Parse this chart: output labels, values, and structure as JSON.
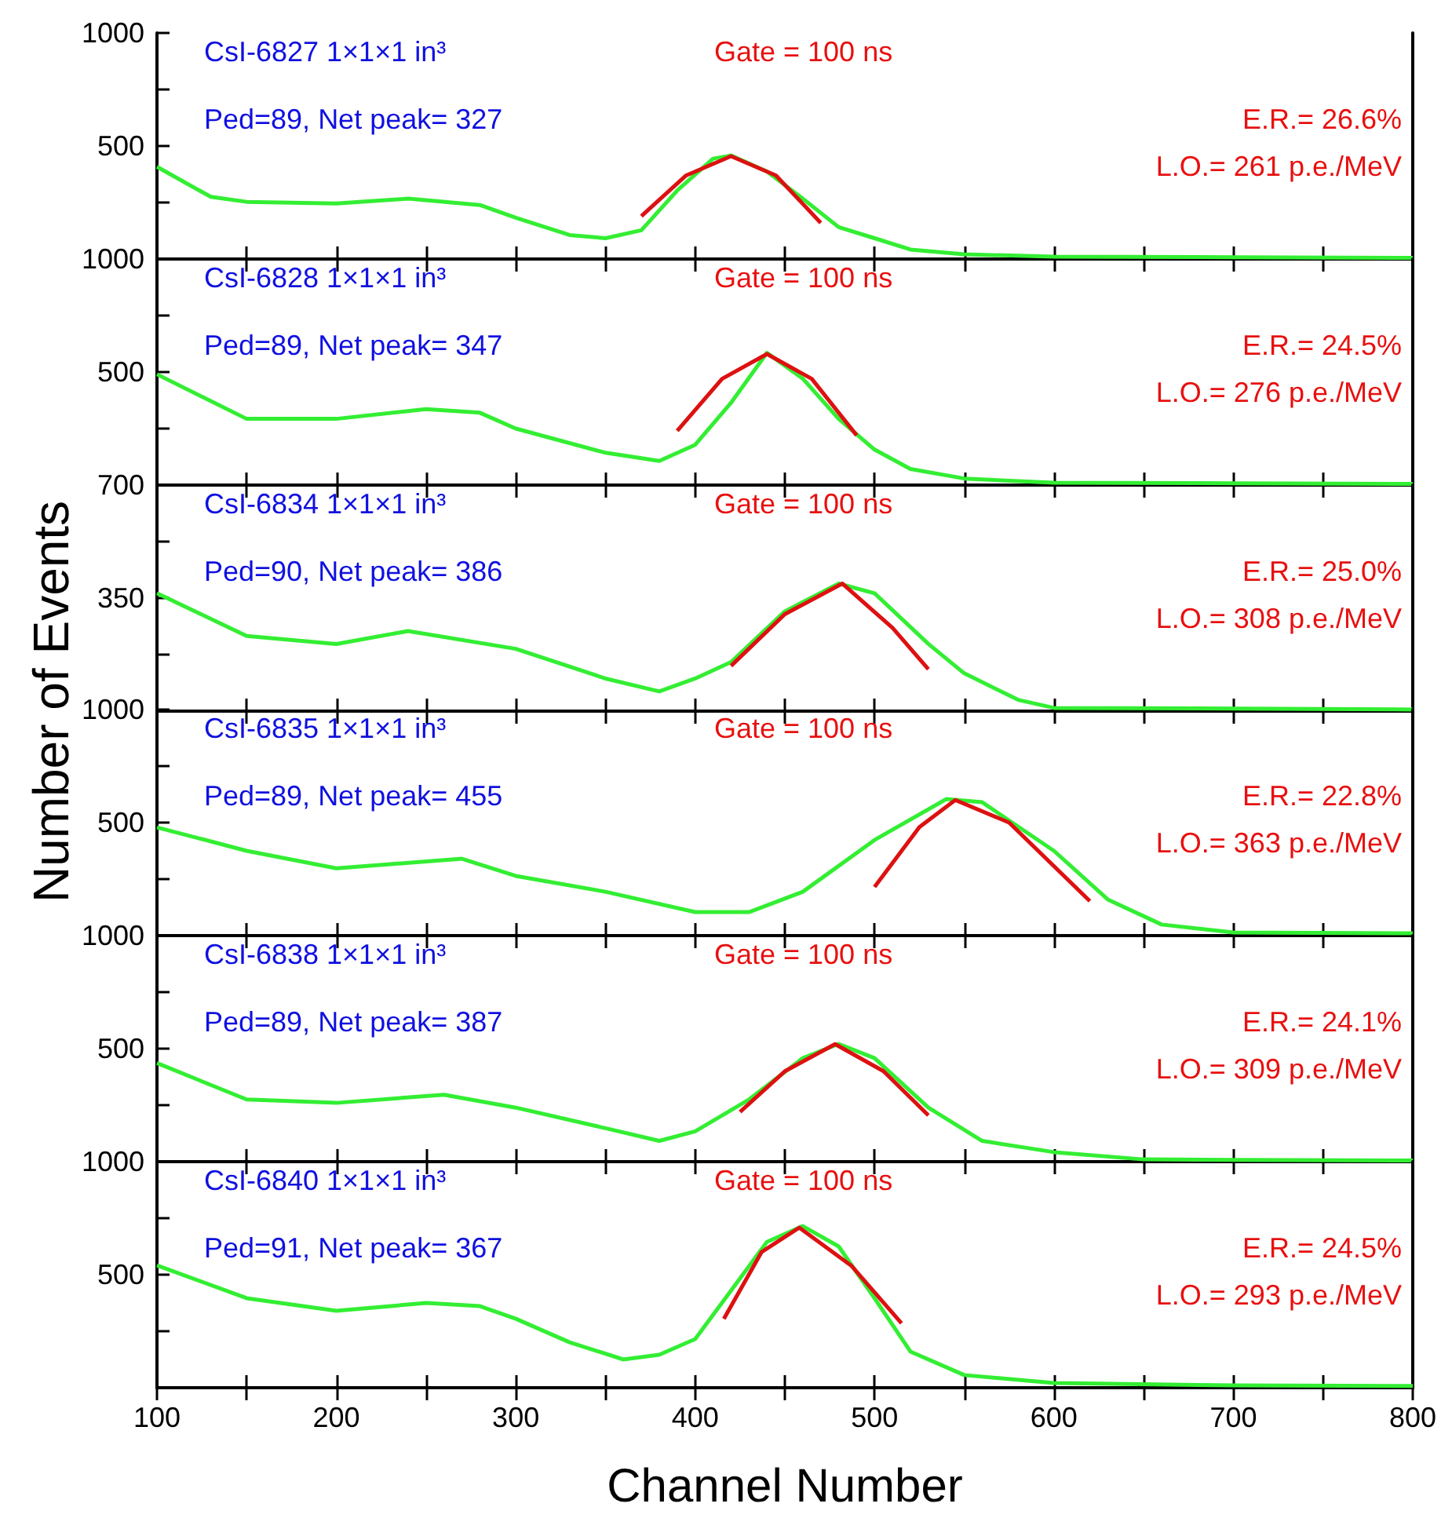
{
  "chart_data": [
    {
      "type": "line",
      "title": "CsI-6827 1×1×1 in³",
      "annotations": [
        "Gate = 100 ns",
        "Ped=89, Net peak= 327",
        "E.R.= 26.6%",
        "L.O.= 261 p.e./MeV"
      ],
      "xlim": [
        100,
        800
      ],
      "xticks": [
        100,
        {
          "value": 150,
          "label": null
        },
        200,
        {
          "value": 250,
          "label": null
        },
        300,
        {
          "value": 350,
          "label": null
        },
        400,
        {
          "value": 450,
          "label": null
        },
        500,
        {
          "value": 550,
          "label": null
        },
        600,
        {
          "value": 650,
          "label": null
        },
        700,
        {
          "value": 750,
          "label": null
        },
        800
      ],
      "ylim": [
        0,
        1000
      ],
      "yticks": [
        {
          "value": 0,
          "label": null
        },
        {
          "value": 250,
          "label": null
        },
        500,
        {
          "value": 750,
          "label": null
        },
        1000
      ],
      "tick_labels": "y",
      "series": [
        {
          "color": "#33ee33",
          "x": [
            100,
            130,
            150,
            200,
            240,
            280,
            300,
            330,
            350,
            370,
            390,
            410,
            420,
            440,
            460,
            480,
            500,
            520,
            550,
            600,
            700,
            800
          ],
          "values": [
            408,
            275,
            253,
            246,
            267,
            239,
            183,
            106,
            92,
            127,
            303,
            444,
            458,
            387,
            267,
            141,
            92,
            42,
            21,
            10,
            8,
            5
          ]
        },
        {
          "color": "#dd1111",
          "x": [
            370,
            395,
            420,
            445,
            470
          ],
          "values": [
            190,
            370,
            455,
            370,
            160
          ]
        }
      ]
    },
    {
      "type": "line",
      "title": "CsI-6828 1×1×1 in³",
      "annotations": [
        "Gate = 100 ns",
        "Ped=89, Net peak= 347",
        "E.R.= 24.5%",
        "L.O.= 276 p.e./MeV"
      ],
      "xlim": [
        100,
        800
      ],
      "xticks": [
        100,
        {
          "value": 150,
          "label": null
        },
        200,
        {
          "value": 250,
          "label": null
        },
        300,
        {
          "value": 350,
          "label": null
        },
        400,
        {
          "value": 450,
          "label": null
        },
        500,
        {
          "value": 550,
          "label": null
        },
        600,
        {
          "value": 650,
          "label": null
        },
        700,
        {
          "value": 750,
          "label": null
        },
        800
      ],
      "ylim": [
        0,
        1000
      ],
      "yticks": [
        {
          "value": 0,
          "label": null
        },
        {
          "value": 250,
          "label": null
        },
        500,
        {
          "value": 750,
          "label": null
        },
        1000
      ],
      "tick_labels": "y",
      "series": [
        {
          "color": "#33ee33",
          "x": [
            100,
            150,
            200,
            250,
            280,
            300,
            350,
            380,
            400,
            420,
            440,
            460,
            480,
            500,
            520,
            550,
            600,
            700,
            800
          ],
          "values": [
            490,
            293,
            293,
            336,
            320,
            250,
            143,
            107,
            178,
            364,
            585,
            471,
            293,
            157,
            71,
            29,
            10,
            8,
            5
          ]
        },
        {
          "color": "#dd1111",
          "x": [
            390,
            415,
            440,
            465,
            490
          ],
          "values": [
            240,
            470,
            580,
            470,
            220
          ]
        }
      ]
    },
    {
      "type": "line",
      "title": "CsI-6834 1×1×1 in³",
      "annotations": [
        "Gate = 100 ns",
        "Ped=90, Net peak= 386",
        "E.R.= 25.0%",
        "L.O.= 308 p.e./MeV"
      ],
      "xlim": [
        100,
        800
      ],
      "xticks": [
        100,
        {
          "value": 150,
          "label": null
        },
        200,
        {
          "value": 250,
          "label": null
        },
        300,
        {
          "value": 350,
          "label": null
        },
        400,
        {
          "value": 450,
          "label": null
        },
        500,
        {
          "value": 550,
          "label": null
        },
        600,
        {
          "value": 650,
          "label": null
        },
        700,
        {
          "value": 750,
          "label": null
        },
        800
      ],
      "ylim": [
        0,
        700
      ],
      "yticks": [
        {
          "value": 0,
          "label": null
        },
        {
          "value": 175,
          "label": null
        },
        350,
        {
          "value": 525,
          "label": null
        },
        700
      ],
      "tick_labels": "y",
      "ylabel": "Number of Events",
      "series": [
        {
          "color": "#33ee33",
          "x": [
            100,
            150,
            200,
            240,
            300,
            350,
            380,
            400,
            420,
            450,
            480,
            500,
            530,
            550,
            580,
            600,
            700,
            800
          ],
          "values": [
            365,
            233,
            208,
            248,
            193,
            101,
            61,
            101,
            152,
            309,
            395,
            365,
            208,
            117,
            35,
            10,
            8,
            5
          ]
        },
        {
          "color": "#dd1111",
          "x": [
            420,
            450,
            482,
            510,
            530
          ],
          "values": [
            140,
            300,
            395,
            258,
            130
          ]
        }
      ]
    },
    {
      "type": "line",
      "title": "CsI-6835 1×1×1 in³",
      "annotations": [
        "Gate = 100 ns",
        "Ped=89, Net peak= 455",
        "E.R.= 22.8%",
        "L.O.= 363 p.e./MeV"
      ],
      "xlim": [
        100,
        800
      ],
      "xticks": [
        100,
        {
          "value": 150,
          "label": null
        },
        200,
        {
          "value": 250,
          "label": null
        },
        300,
        {
          "value": 350,
          "label": null
        },
        400,
        {
          "value": 450,
          "label": null
        },
        500,
        {
          "value": 550,
          "label": null
        },
        600,
        {
          "value": 650,
          "label": null
        },
        700,
        {
          "value": 750,
          "label": null
        },
        800
      ],
      "ylim": [
        0,
        1000
      ],
      "yticks": [
        {
          "value": 0,
          "label": null
        },
        {
          "value": 250,
          "label": null
        },
        500,
        {
          "value": 750,
          "label": null
        },
        1000
      ],
      "tick_labels": "y",
      "series": [
        {
          "color": "#33ee33",
          "x": [
            100,
            150,
            200,
            270,
            300,
            350,
            400,
            430,
            460,
            500,
            540,
            560,
            600,
            630,
            660,
            700,
            800
          ],
          "values": [
            479,
            375,
            298,
            340,
            264,
            194,
            104,
            104,
            194,
            423,
            604,
            590,
            375,
            160,
            49,
            14,
            10
          ]
        },
        {
          "color": "#dd1111",
          "x": [
            500,
            525,
            545,
            575,
            620
          ],
          "values": [
            215,
            480,
            600,
            500,
            153
          ]
        }
      ]
    },
    {
      "type": "line",
      "title": "CsI-6838 1×1×1 in³",
      "annotations": [
        "Gate = 100 ns",
        "Ped=89, Net peak= 387",
        "E.R.= 24.1%",
        "L.O.= 309 p.e./MeV"
      ],
      "xlim": [
        100,
        800
      ],
      "xticks": [
        100,
        {
          "value": 150,
          "label": null
        },
        200,
        {
          "value": 250,
          "label": null
        },
        300,
        {
          "value": 350,
          "label": null
        },
        400,
        {
          "value": 450,
          "label": null
        },
        500,
        {
          "value": 550,
          "label": null
        },
        600,
        {
          "value": 650,
          "label": null
        },
        700,
        {
          "value": 750,
          "label": null
        },
        800
      ],
      "ylim": [
        0,
        1000
      ],
      "yticks": [
        {
          "value": 0,
          "label": null
        },
        {
          "value": 250,
          "label": null
        },
        500,
        {
          "value": 750,
          "label": null
        },
        1000
      ],
      "tick_labels": "y",
      "series": [
        {
          "color": "#33ee33",
          "x": [
            100,
            150,
            200,
            260,
            300,
            350,
            380,
            400,
            430,
            460,
            480,
            500,
            530,
            560,
            600,
            650,
            700,
            800
          ],
          "values": [
            436,
            275,
            260,
            296,
            239,
            148,
            92,
            134,
            275,
            458,
            521,
            458,
            239,
            92,
            42,
            10,
            8,
            5
          ]
        },
        {
          "color": "#dd1111",
          "x": [
            425,
            450,
            478,
            505,
            530
          ],
          "values": [
            220,
            400,
            520,
            400,
            205
          ]
        }
      ]
    },
    {
      "type": "line",
      "title": "CsI-6840 1×1×1 in³",
      "annotations": [
        "Gate = 100 ns",
        "Ped=91, Net peak= 367",
        "E.R.= 24.5%",
        "L.O.= 293 p.e./MeV"
      ],
      "xlim": [
        100,
        800
      ],
      "xticks": [
        100,
        {
          "value": 150,
          "label": null
        },
        200,
        {
          "value": 250,
          "label": null
        },
        300,
        {
          "value": 350,
          "label": null
        },
        400,
        {
          "value": 450,
          "label": null
        },
        500,
        {
          "value": 550,
          "label": null
        },
        600,
        {
          "value": 650,
          "label": null
        },
        700,
        {
          "value": 750,
          "label": null
        },
        800
      ],
      "ylim": [
        0,
        1000
      ],
      "yticks": [
        {
          "value": 0,
          "label": null
        },
        {
          "value": 250,
          "label": null
        },
        500,
        {
          "value": 750,
          "label": null
        },
        1000
      ],
      "xlabel": "Channel Number",
      "series": [
        {
          "color": "#33ee33",
          "x": [
            100,
            150,
            200,
            250,
            280,
            300,
            330,
            360,
            380,
            400,
            420,
            440,
            460,
            480,
            500,
            520,
            550,
            600,
            700,
            800
          ],
          "values": [
            541,
            396,
            340,
            375,
            361,
            305,
            201,
            125,
            146,
            215,
            430,
            645,
            715,
            625,
            396,
            160,
            56,
            21,
            10,
            8
          ]
        },
        {
          "color": "#dd1111",
          "x": [
            416,
            437,
            458,
            487,
            515
          ],
          "values": [
            305,
            600,
            708,
            540,
            285
          ]
        }
      ]
    }
  ]
}
